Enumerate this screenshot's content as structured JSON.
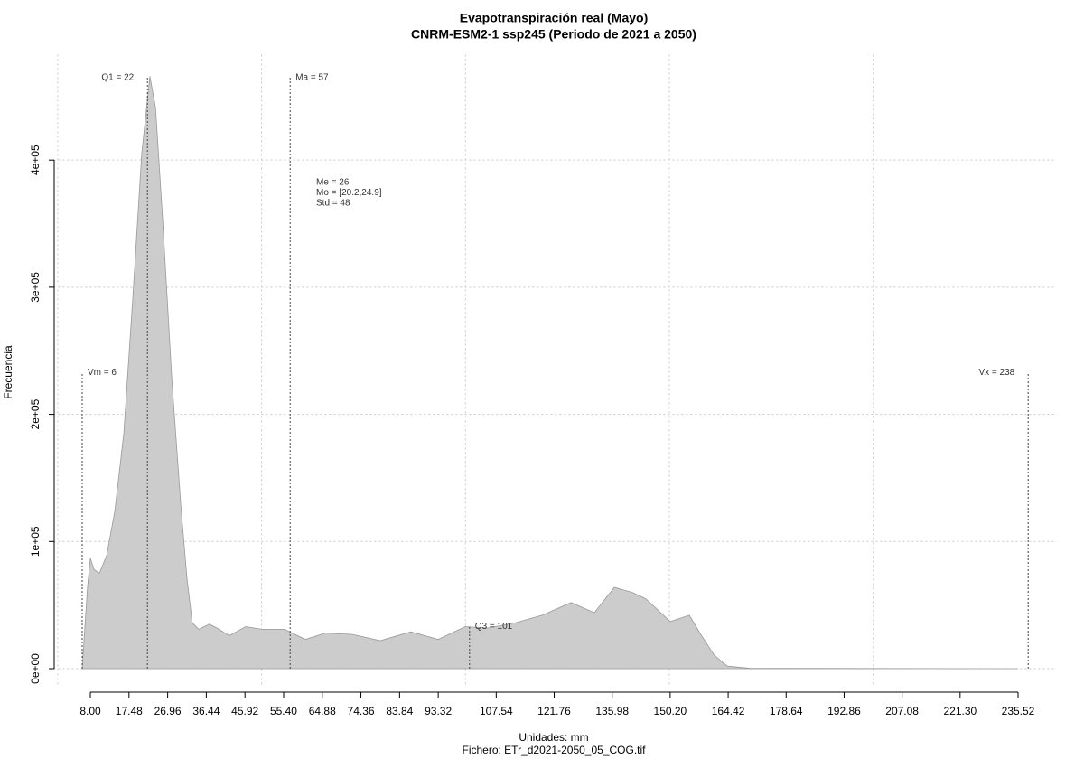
{
  "chart_data": {
    "type": "area",
    "title": "Evapotranspiración real (Mayo)",
    "subtitle": "CNRM-ESM2-1 ssp245 (Periodo de 2021 a 2050)",
    "x_label": "Unidades: mm",
    "caption": "Fichero: ETr_d2021-2050_05_COG.tif",
    "y_label": "Frecuencia",
    "color": "#cccccc",
    "line_color": "#999999",
    "x": [
      6,
      7.3,
      8,
      8.9,
      10.2,
      12,
      14,
      16.2,
      18.4,
      20.6,
      22.6,
      24,
      25.7,
      28,
      30.2,
      31.7,
      33,
      34.6,
      37.2,
      39,
      42.1,
      46.1,
      50.1,
      55.6,
      60.7,
      65.6,
      72.2,
      79.1,
      86.6,
      93.3,
      99.9,
      105.5,
      112.1,
      118.8,
      125.9,
      131.6,
      136.5,
      140.9,
      144.2,
      150.2,
      154.9,
      157.5,
      160.9,
      164.2,
      169.7,
      235.5
    ],
    "values": [
      0,
      64000,
      87000,
      78000,
      75000,
      89000,
      124000,
      185000,
      291000,
      405000,
      466000,
      441000,
      355000,
      227000,
      128000,
      71000,
      36000,
      31000,
      35000,
      32000,
      26000,
      33000,
      31000,
      31000,
      23000,
      28000,
      27000,
      22000,
      29000,
      23000,
      33000,
      32000,
      36000,
      42000,
      52000,
      44000,
      64000,
      60000,
      55000,
      37000,
      42000,
      28000,
      11000,
      2000,
      300,
      0
    ],
    "xlim": [
      -1,
      245
    ],
    "ylim": [
      -14000,
      483000
    ],
    "xticks": [
      {
        "value": 8,
        "label": "8.00"
      },
      17.48,
      26.96,
      36.44,
      45.92,
      {
        "value": 55.4,
        "label": "55.40"
      },
      64.88,
      74.36,
      83.84,
      93.32,
      107.54,
      121.76,
      135.98,
      {
        "value": 150.2,
        "label": "150.20"
      },
      164.42,
      178.64,
      192.86,
      207.08,
      {
        "value": 221.3,
        "label": "221.30"
      },
      235.52
    ],
    "yticks": [
      {
        "value": 0,
        "label": "0e+00"
      },
      {
        "value": 100000,
        "label": "1e+05"
      },
      {
        "value": 200000,
        "label": "2e+05"
      },
      {
        "value": 300000,
        "label": "3e+05"
      },
      {
        "value": 400000,
        "label": "4e+05"
      }
    ],
    "x_grid": [
      0,
      50,
      100,
      150,
      200
    ],
    "grid": true,
    "reference_lines": [
      {
        "label": "Vm = 6",
        "x": 6,
        "y": 233000,
        "label_side": "right"
      },
      {
        "label": "Q1 = 22",
        "x": 22,
        "y": 465000,
        "label_side": "left"
      },
      {
        "label": "Ma = 57",
        "x": 57,
        "y": 465000,
        "label_side": "right"
      },
      {
        "label": "Q3 = 101",
        "x": 101,
        "y": 33000,
        "label_side": "right"
      },
      {
        "label": "Vx = 238",
        "x": 238,
        "y": 233000,
        "label_side": "left"
      }
    ],
    "annotations": [
      "Me = 26",
      "Mo = [20.2,24.9]",
      "Std = 48"
    ]
  }
}
